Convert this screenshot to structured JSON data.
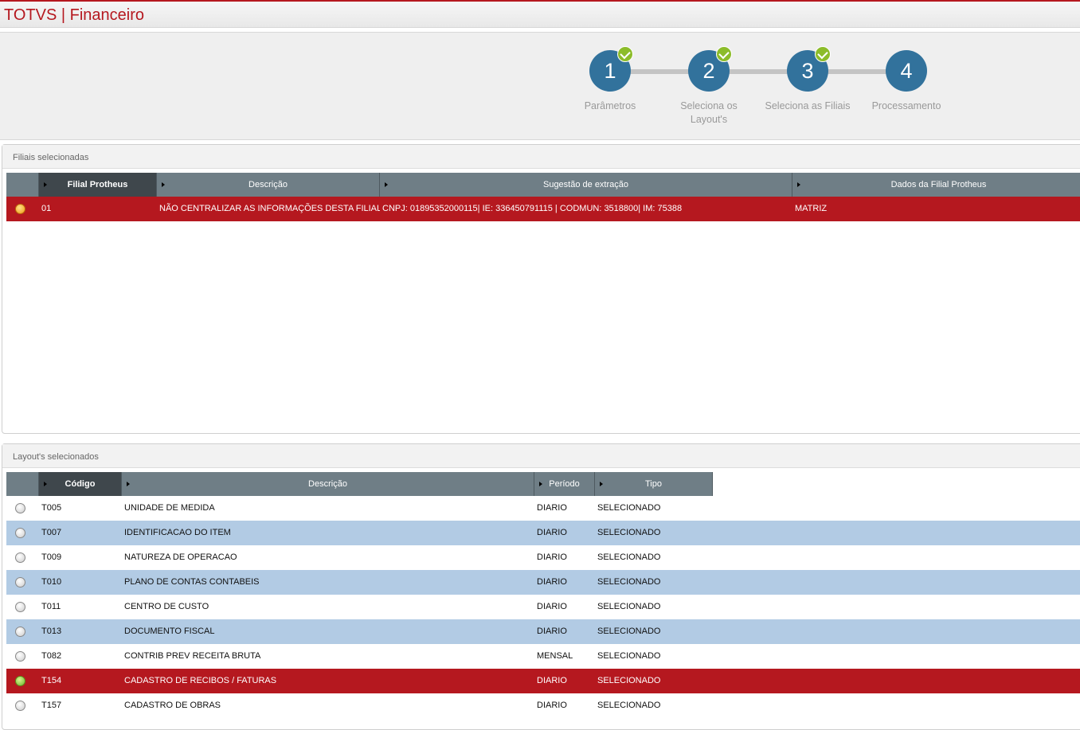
{
  "header": {
    "title": "TOTVS | Financeiro"
  },
  "steps": [
    {
      "number": 1,
      "label": "Parâmetros",
      "done": true
    },
    {
      "number": 2,
      "label": "Seleciona os Layout's",
      "done": true
    },
    {
      "number": 3,
      "label": "Seleciona as Filiais",
      "done": true
    },
    {
      "number": 4,
      "label": "Processamento",
      "done": false
    }
  ],
  "filiais": {
    "title": "Filiais selecionadas",
    "columns": [
      "Filial Protheus",
      "Descrição",
      "Sugestão de extração",
      "Dados da Filial Protheus"
    ],
    "selected_row": 0,
    "rows": [
      [
        "01",
        "NÃO CENTRALIZAR AS INFORMAÇÕES DESTA FILIAL",
        "CNPJ: 01895352000115| IE: 336450791115  | CODMUN: 3518800| IM: 75388",
        "MATRIZ"
      ]
    ]
  },
  "layouts": {
    "title": "Layout's selecionados",
    "columns": [
      "Código",
      "Descrição",
      "Período",
      "Tipo"
    ],
    "selected_row": 7,
    "rows": [
      [
        "T005",
        "UNIDADE DE MEDIDA",
        "DIARIO",
        "SELECIONADO"
      ],
      [
        "T007",
        "IDENTIFICACAO DO ITEM",
        "DIARIO",
        "SELECIONADO"
      ],
      [
        "T009",
        "NATUREZA DE OPERACAO",
        "DIARIO",
        "SELECIONADO"
      ],
      [
        "T010",
        "PLANO DE CONTAS CONTABEIS",
        "DIARIO",
        "SELECIONADO"
      ],
      [
        "T011",
        "CENTRO DE CUSTO",
        "DIARIO",
        "SELECIONADO"
      ],
      [
        "T013",
        "DOCUMENTO FISCAL",
        "DIARIO",
        "SELECIONADO"
      ],
      [
        "T082",
        "CONTRIB PREV RECEITA BRUTA",
        "MENSAL",
        "SELECIONADO"
      ],
      [
        "T154",
        "CADASTRO DE RECIBOS / FATURAS",
        "DIARIO",
        "SELECIONADO"
      ],
      [
        "T157",
        "CADASTRO DE OBRAS",
        "DIARIO",
        "SELECIONADO"
      ]
    ]
  }
}
